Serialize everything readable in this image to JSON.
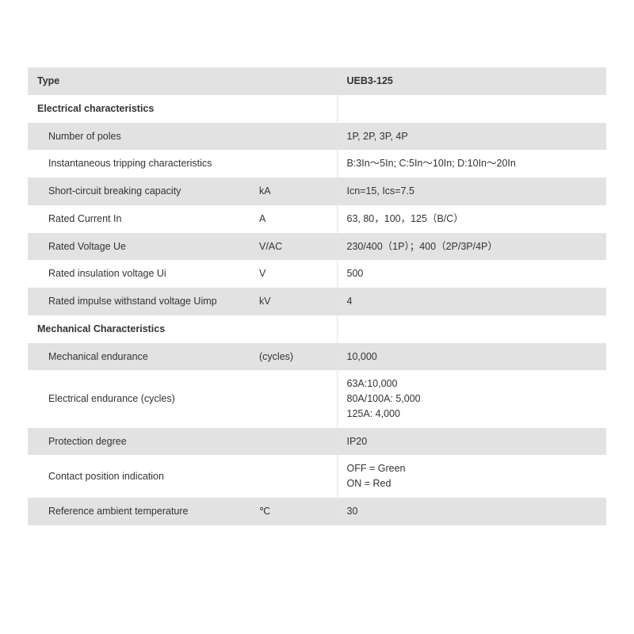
{
  "colors": {
    "row_shaded": "#e2e2e2",
    "row_white": "#ffffff",
    "text": "#333333",
    "divider": "#e5e5e5"
  },
  "header": {
    "type_label": "Type",
    "type_value": "UEB3-125"
  },
  "sections": [
    {
      "title": "Electrical characteristics",
      "rows": [
        {
          "label": "Number of poles",
          "unit": "",
          "value": "1P, 2P, 3P, 4P",
          "shaded": true
        },
        {
          "label": "Instantaneous tripping characteristics",
          "unit": "",
          "value": "B:3In～5In; C:5In～10In; D:10In～20In",
          "shaded": false
        },
        {
          "label": "Short-circuit breaking capacity",
          "unit": "kA",
          "value": "Icn=15, Ics=7.5",
          "shaded": true
        },
        {
          "label": "Rated Current In",
          "unit": "A",
          "value": "63, 80，100，125（B/C）",
          "shaded": false
        },
        {
          "label": "Rated Voltage Ue",
          "unit": "V/AC",
          "value": "230/400（1P）；400（2P/3P/4P）",
          "shaded": true
        },
        {
          "label": "Rated insulation voltage Ui",
          "unit": "V",
          "value": "500",
          "shaded": false
        },
        {
          "label": "Rated impulse withstand voltage Uimp",
          "unit": "kV",
          "value": "4",
          "shaded": true
        }
      ]
    },
    {
      "title": "Mechanical Characteristics",
      "rows": [
        {
          "label": "Mechanical endurance",
          "unit": "(cycles)",
          "value": "10,000",
          "shaded": true
        },
        {
          "label": "Electrical endurance (cycles)",
          "unit": "",
          "value": "63A:10,000\n80A/100A: 5,000\n125A: 4,000",
          "shaded": false
        },
        {
          "label": "Protection degree",
          "unit": "",
          "value": "IP20",
          "shaded": true
        },
        {
          "label": "Contact position indication",
          "unit": "",
          "value": "OFF = Green\nON = Red",
          "shaded": false
        },
        {
          "label": "Reference ambient temperature",
          "unit": "℃",
          "value": "30",
          "shaded": true
        }
      ]
    }
  ]
}
